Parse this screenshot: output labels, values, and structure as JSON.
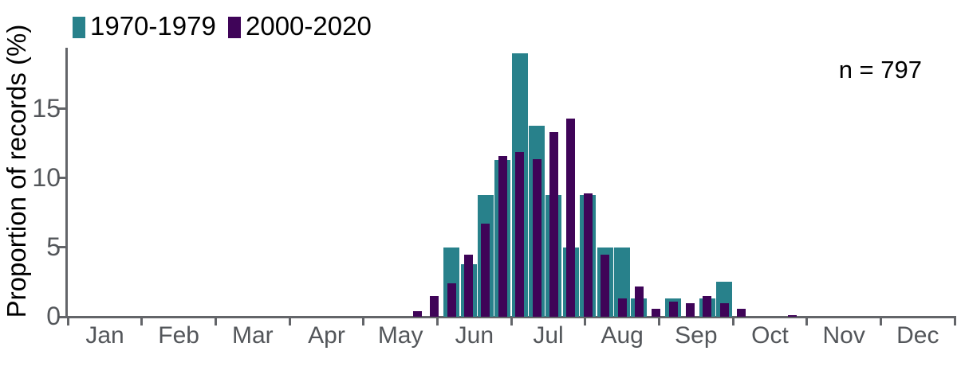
{
  "chart_data": {
    "type": "bar",
    "title": "",
    "xlabel": "",
    "ylabel": "Proportion of records (%)",
    "annotation": "n = 797",
    "x_unit": "week of year",
    "weeks_per_year": 52,
    "months": [
      "Jan",
      "Feb",
      "Mar",
      "Apr",
      "May",
      "Jun",
      "Jul",
      "Aug",
      "Sep",
      "Oct",
      "Nov",
      "Dec"
    ],
    "yticks": [
      0,
      5,
      10,
      15
    ],
    "ylim": [
      0,
      19.3
    ],
    "grid": false,
    "legend_position": "top-left",
    "axis_color": "#636569",
    "tick_label_color": "#53565a",
    "text_color": "#000000",
    "series": [
      {
        "name": "1970-1979",
        "color": "#28818b",
        "points": [
          [
            23,
            5.0
          ],
          [
            24,
            3.8
          ],
          [
            25,
            8.8
          ],
          [
            26,
            11.3
          ],
          [
            27,
            19.0
          ],
          [
            28,
            13.8
          ],
          [
            29,
            8.8
          ],
          [
            30,
            5.0
          ],
          [
            31,
            8.8
          ],
          [
            32,
            5.0
          ],
          [
            33,
            5.0
          ],
          [
            34,
            1.3
          ],
          [
            36,
            1.3
          ],
          [
            38,
            1.3
          ],
          [
            39,
            2.5
          ]
        ]
      },
      {
        "name": "2000-2020",
        "color": "#3f0458",
        "points": [
          [
            21,
            0.4
          ],
          [
            22,
            1.5
          ],
          [
            23,
            2.4
          ],
          [
            24,
            4.5
          ],
          [
            25,
            6.7
          ],
          [
            26,
            11.6
          ],
          [
            27,
            11.9
          ],
          [
            28,
            11.4
          ],
          [
            29,
            13.3
          ],
          [
            30,
            14.3
          ],
          [
            31,
            8.9
          ],
          [
            32,
            4.5
          ],
          [
            33,
            1.3
          ],
          [
            34,
            2.2
          ],
          [
            35,
            0.6
          ],
          [
            36,
            1.1
          ],
          [
            37,
            1.0
          ],
          [
            38,
            1.5
          ],
          [
            39,
            1.0
          ],
          [
            40,
            0.6
          ],
          [
            43,
            0.1
          ]
        ]
      }
    ]
  }
}
